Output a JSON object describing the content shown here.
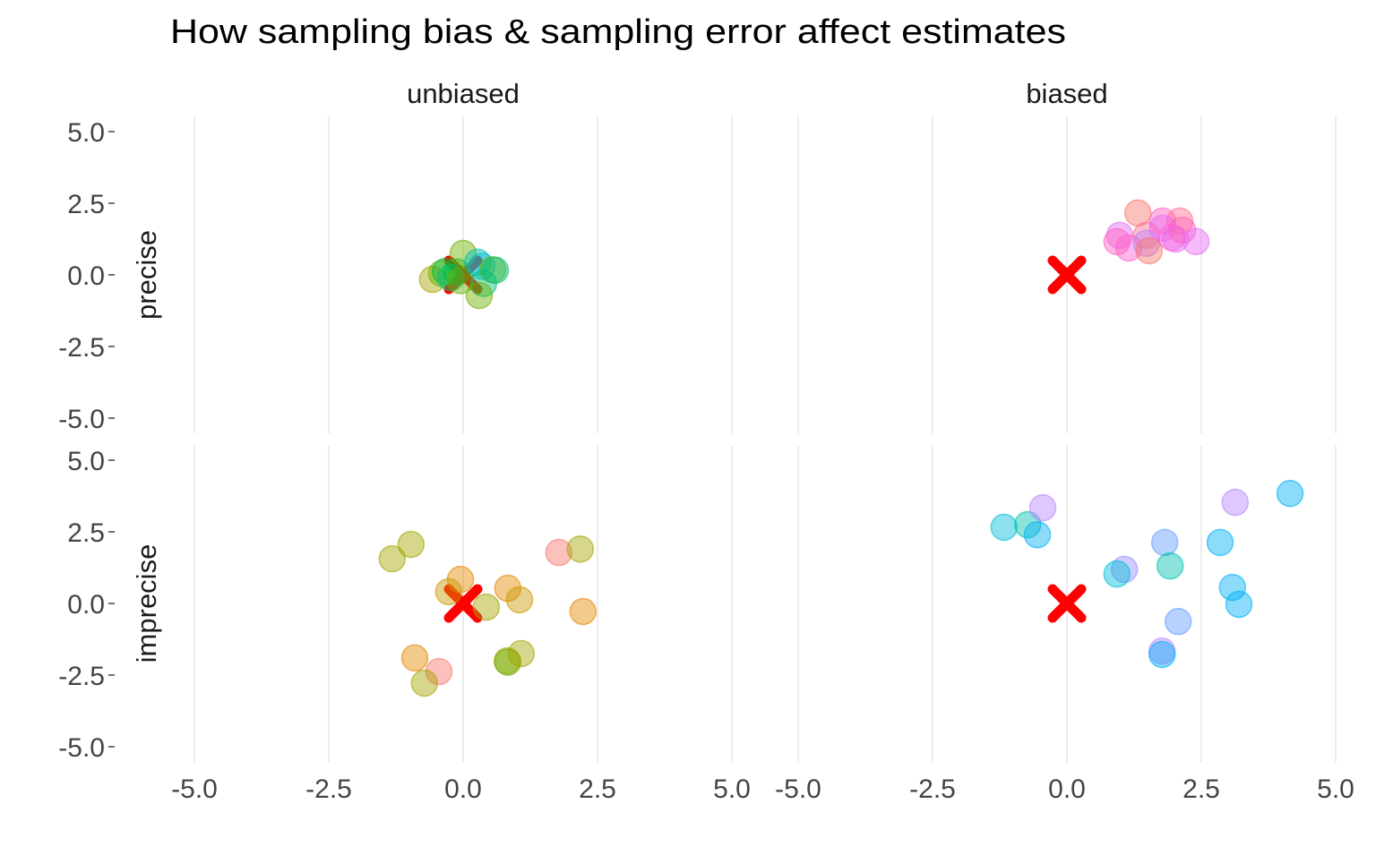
{
  "chart_data": {
    "type": "scatter",
    "title": "How sampling bias & sampling error affect estimates",
    "xlabel": "",
    "ylabel": "",
    "xlim": [
      -5,
      5
    ],
    "ylim": [
      -5,
      5
    ],
    "x_ticks": [
      "-5.0",
      "-2.5",
      "0.0",
      "2.5",
      "5.0"
    ],
    "y_ticks": [
      "5.0",
      "2.5",
      "0.0",
      "-2.5",
      "-5.0"
    ],
    "x_tick_values": [
      -5,
      -2.5,
      0,
      2.5,
      5
    ],
    "y_tick_values": [
      5,
      2.5,
      0,
      -2.5,
      -5
    ],
    "grid": "vertical major lines",
    "legend": "none",
    "columns": [
      "unbiased",
      "biased"
    ],
    "rows": [
      "precise",
      "imprecise"
    ],
    "target": {
      "x": 0,
      "y": 0,
      "marker": "x",
      "color": "#FF0000"
    },
    "point_alpha": 0.45,
    "facets": [
      {
        "column": "unbiased",
        "row": "precise",
        "points": [
          {
            "x": -0.57,
            "y": -0.16,
            "color": "#A3A500"
          },
          {
            "x": -0.4,
            "y": 0.05,
            "color": "#6BB100"
          },
          {
            "x": -0.33,
            "y": 0.12,
            "color": "#00BA38"
          },
          {
            "x": -0.23,
            "y": -0.1,
            "color": "#00BF7D"
          },
          {
            "x": -0.12,
            "y": 0.1,
            "color": "#00BA38"
          },
          {
            "x": 0.0,
            "y": 0.75,
            "color": "#6BB100"
          },
          {
            "x": -0.05,
            "y": -0.2,
            "color": "#6BB100"
          },
          {
            "x": 0.27,
            "y": 0.44,
            "color": "#00C0AF"
          },
          {
            "x": 0.35,
            "y": 0.3,
            "color": "#00BCD8"
          },
          {
            "x": 0.55,
            "y": 0.18,
            "color": "#6BB100"
          },
          {
            "x": 0.6,
            "y": 0.16,
            "color": "#00BF7D"
          },
          {
            "x": 0.38,
            "y": -0.3,
            "color": "#00BF7D"
          },
          {
            "x": 0.3,
            "y": -0.72,
            "color": "#6BB100"
          }
        ]
      },
      {
        "column": "biased",
        "row": "precise",
        "points": [
          {
            "x": 1.32,
            "y": 2.16,
            "color": "#F8766D"
          },
          {
            "x": 1.78,
            "y": 1.88,
            "color": "#FF62BC"
          },
          {
            "x": 2.1,
            "y": 1.88,
            "color": "#FF6C91"
          },
          {
            "x": 0.98,
            "y": 1.38,
            "color": "#E76BF3"
          },
          {
            "x": 0.93,
            "y": 1.16,
            "color": "#FF62BC"
          },
          {
            "x": 1.15,
            "y": 0.94,
            "color": "#FD61D1"
          },
          {
            "x": 1.48,
            "y": 1.38,
            "color": "#FF6C91"
          },
          {
            "x": 1.48,
            "y": 1.1,
            "color": "#B983FF"
          },
          {
            "x": 1.53,
            "y": 0.84,
            "color": "#F8766D"
          },
          {
            "x": 1.78,
            "y": 1.63,
            "color": "#E76BF3"
          },
          {
            "x": 1.95,
            "y": 1.3,
            "color": "#FD61D1"
          },
          {
            "x": 2.02,
            "y": 1.25,
            "color": "#E76BF3"
          },
          {
            "x": 2.15,
            "y": 1.56,
            "color": "#FF62BC"
          },
          {
            "x": 2.4,
            "y": 1.16,
            "color": "#E76BF3"
          }
        ]
      },
      {
        "column": "unbiased",
        "row": "imprecise",
        "points": [
          {
            "x": -1.32,
            "y": 1.56,
            "color": "#A3A500"
          },
          {
            "x": -0.97,
            "y": 2.06,
            "color": "#A3A500"
          },
          {
            "x": 1.78,
            "y": 1.78,
            "color": "#F8766D"
          },
          {
            "x": 2.18,
            "y": 1.9,
            "color": "#A3A500"
          },
          {
            "x": -0.05,
            "y": 0.84,
            "color": "#E58700"
          },
          {
            "x": -0.27,
            "y": 0.41,
            "color": "#C99800"
          },
          {
            "x": 0.83,
            "y": 0.53,
            "color": "#E58700"
          },
          {
            "x": 1.05,
            "y": 0.13,
            "color": "#C99800"
          },
          {
            "x": 0.43,
            "y": -0.13,
            "color": "#A3A500"
          },
          {
            "x": 2.23,
            "y": -0.28,
            "color": "#E58700"
          },
          {
            "x": -0.9,
            "y": -1.9,
            "color": "#E58700"
          },
          {
            "x": -0.45,
            "y": -2.38,
            "color": "#F8766D"
          },
          {
            "x": -0.72,
            "y": -2.78,
            "color": "#A3A500"
          },
          {
            "x": 0.82,
            "y": -2.0,
            "color": "#A3A500"
          },
          {
            "x": 0.83,
            "y": -2.05,
            "color": "#6BB100"
          },
          {
            "x": 1.08,
            "y": -1.75,
            "color": "#A3A500"
          }
        ]
      },
      {
        "column": "biased",
        "row": "imprecise",
        "points": [
          {
            "x": -1.17,
            "y": 2.66,
            "color": "#00BCD8"
          },
          {
            "x": -0.73,
            "y": 2.75,
            "color": "#00C0AF"
          },
          {
            "x": -0.55,
            "y": 2.4,
            "color": "#00B0F6"
          },
          {
            "x": -0.45,
            "y": 3.34,
            "color": "#B983FF"
          },
          {
            "x": 1.82,
            "y": 2.13,
            "color": "#619CFF"
          },
          {
            "x": 1.92,
            "y": 1.31,
            "color": "#00C0AF"
          },
          {
            "x": 2.85,
            "y": 2.13,
            "color": "#00B0F6"
          },
          {
            "x": 3.13,
            "y": 3.53,
            "color": "#B983FF"
          },
          {
            "x": 4.15,
            "y": 3.84,
            "color": "#00B0F6"
          },
          {
            "x": 1.07,
            "y": 1.19,
            "color": "#9590FF"
          },
          {
            "x": 0.93,
            "y": 1.03,
            "color": "#00BCD8"
          },
          {
            "x": 3.08,
            "y": 0.56,
            "color": "#00B0F6"
          },
          {
            "x": 3.2,
            "y": -0.03,
            "color": "#00B0F6"
          },
          {
            "x": 2.07,
            "y": -0.63,
            "color": "#619CFF"
          },
          {
            "x": 1.77,
            "y": -1.66,
            "color": "#B983FF"
          },
          {
            "x": 1.77,
            "y": -1.78,
            "color": "#00B0F6"
          }
        ]
      }
    ]
  }
}
